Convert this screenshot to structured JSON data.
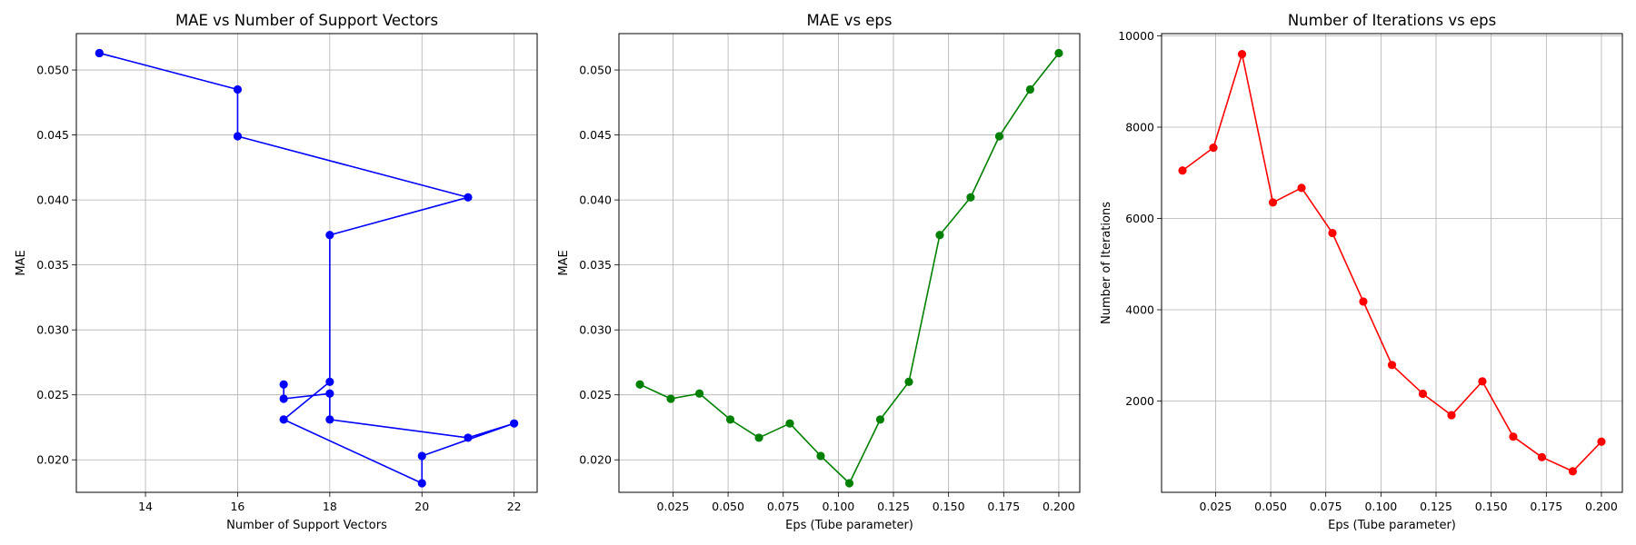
{
  "chart_data": [
    {
      "type": "line",
      "title": "MAE vs Number of Support Vectors",
      "xlabel": "Number of Support Vectors",
      "ylabel": "MAE",
      "xlim": [
        12.5,
        22.5
      ],
      "ylim": [
        0.0175,
        0.0528
      ],
      "xticks": [
        14,
        16,
        18,
        20,
        22
      ],
      "xtick_labels": [
        "14",
        "16",
        "18",
        "20",
        "22"
      ],
      "yticks": [
        0.02,
        0.025,
        0.03,
        0.035,
        0.04,
        0.045,
        0.05
      ],
      "ytick_labels": [
        "0.020",
        "0.025",
        "0.030",
        "0.035",
        "0.040",
        "0.045",
        "0.050"
      ],
      "grid": true,
      "color": "#0000ff",
      "series": [
        {
          "x": [
            17,
            17,
            18,
            18,
            21,
            22,
            20,
            20,
            17,
            18,
            18,
            21,
            16,
            16,
            13,
            13
          ],
          "values": [
            0.0258,
            0.0247,
            0.0251,
            0.0231,
            0.0217,
            0.0228,
            0.0203,
            0.0182,
            0.0231,
            0.026,
            0.0373,
            0.0402,
            0.0449,
            0.0485,
            0.0513,
            0.0513
          ]
        }
      ]
    },
    {
      "type": "line",
      "title": "MAE vs eps",
      "xlabel": "Eps (Tube parameter)",
      "ylabel": "MAE",
      "xlim": [
        0.0005,
        0.2095
      ],
      "ylim": [
        0.0175,
        0.0528
      ],
      "xticks": [
        0.025,
        0.05,
        0.075,
        0.1,
        0.125,
        0.15,
        0.175,
        0.2
      ],
      "xtick_labels": [
        "0.025",
        "0.050",
        "0.075",
        "0.100",
        "0.125",
        "0.150",
        "0.175",
        "0.200"
      ],
      "yticks": [
        0.02,
        0.025,
        0.03,
        0.035,
        0.04,
        0.045,
        0.05
      ],
      "ytick_labels": [
        "0.020",
        "0.025",
        "0.030",
        "0.035",
        "0.040",
        "0.045",
        "0.050"
      ],
      "grid": true,
      "color": "#008000",
      "series": [
        {
          "x": [
            0.01,
            0.024,
            0.037,
            0.051,
            0.064,
            0.078,
            0.092,
            0.105,
            0.119,
            0.132,
            0.146,
            0.16,
            0.173,
            0.187,
            0.2
          ],
          "values": [
            0.0258,
            0.0247,
            0.0251,
            0.0231,
            0.0217,
            0.0228,
            0.0203,
            0.0182,
            0.0231,
            0.026,
            0.0373,
            0.0402,
            0.0449,
            0.0485,
            0.0513
          ]
        }
      ]
    },
    {
      "type": "line",
      "title": "Number of Iterations vs eps",
      "xlabel": "Eps (Tube parameter)",
      "ylabel": "Number of Iterations",
      "xlim": [
        0.0005,
        0.2095
      ],
      "ylim": [
        0,
        10050
      ],
      "xticks": [
        0.025,
        0.05,
        0.075,
        0.1,
        0.125,
        0.15,
        0.175,
        0.2
      ],
      "xtick_labels": [
        "0.025",
        "0.050",
        "0.075",
        "0.100",
        "0.125",
        "0.150",
        "0.175",
        "0.200"
      ],
      "yticks": [
        2000,
        4000,
        6000,
        8000,
        10000
      ],
      "ytick_labels": [
        "2000",
        "4000",
        "6000",
        "8000",
        "10000"
      ],
      "grid": true,
      "color": "#ff0000",
      "series": [
        {
          "x": [
            0.01,
            0.024,
            0.037,
            0.051,
            0.064,
            0.078,
            0.092,
            0.105,
            0.119,
            0.132,
            0.146,
            0.16,
            0.173,
            0.187,
            0.2
          ],
          "values": [
            7050,
            7550,
            9600,
            6350,
            6670,
            5680,
            4180,
            2790,
            2160,
            1690,
            2430,
            1220,
            770,
            460,
            1110
          ]
        }
      ]
    }
  ]
}
